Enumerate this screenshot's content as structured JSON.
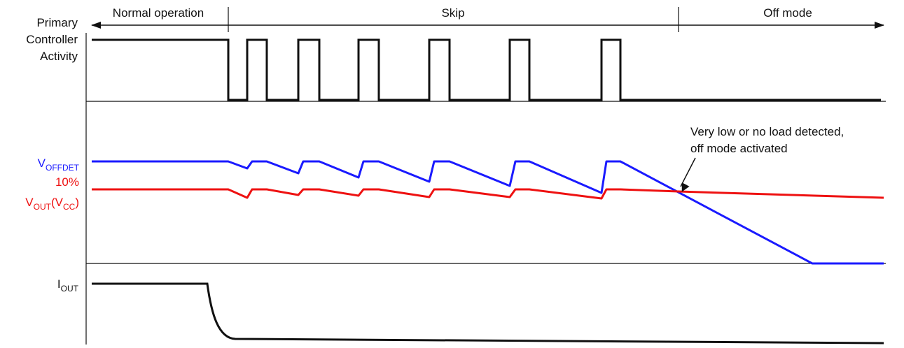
{
  "phases": {
    "normal": "Normal operation",
    "skip": "Skip",
    "off": "Off mode"
  },
  "labels": {
    "primary_line1": "Primary",
    "primary_line2": "Controller",
    "primary_line3": "Activity",
    "voffdet_main": "V",
    "voffdet_sub": "OFFDET",
    "ten_percent": "10%",
    "vout_main": "V",
    "vout_sub": "OUT",
    "vout_paren_open": "(V",
    "vcc_sub": "CC",
    "vout_paren_close": ")",
    "iout_main": "I",
    "iout_sub": "OUT"
  },
  "annotation": {
    "line1": "Very low or no load detected,",
    "line2": "off mode activated"
  },
  "colors": {
    "black": "#111111",
    "blue": "#1a1aff",
    "red": "#ee1111"
  }
}
